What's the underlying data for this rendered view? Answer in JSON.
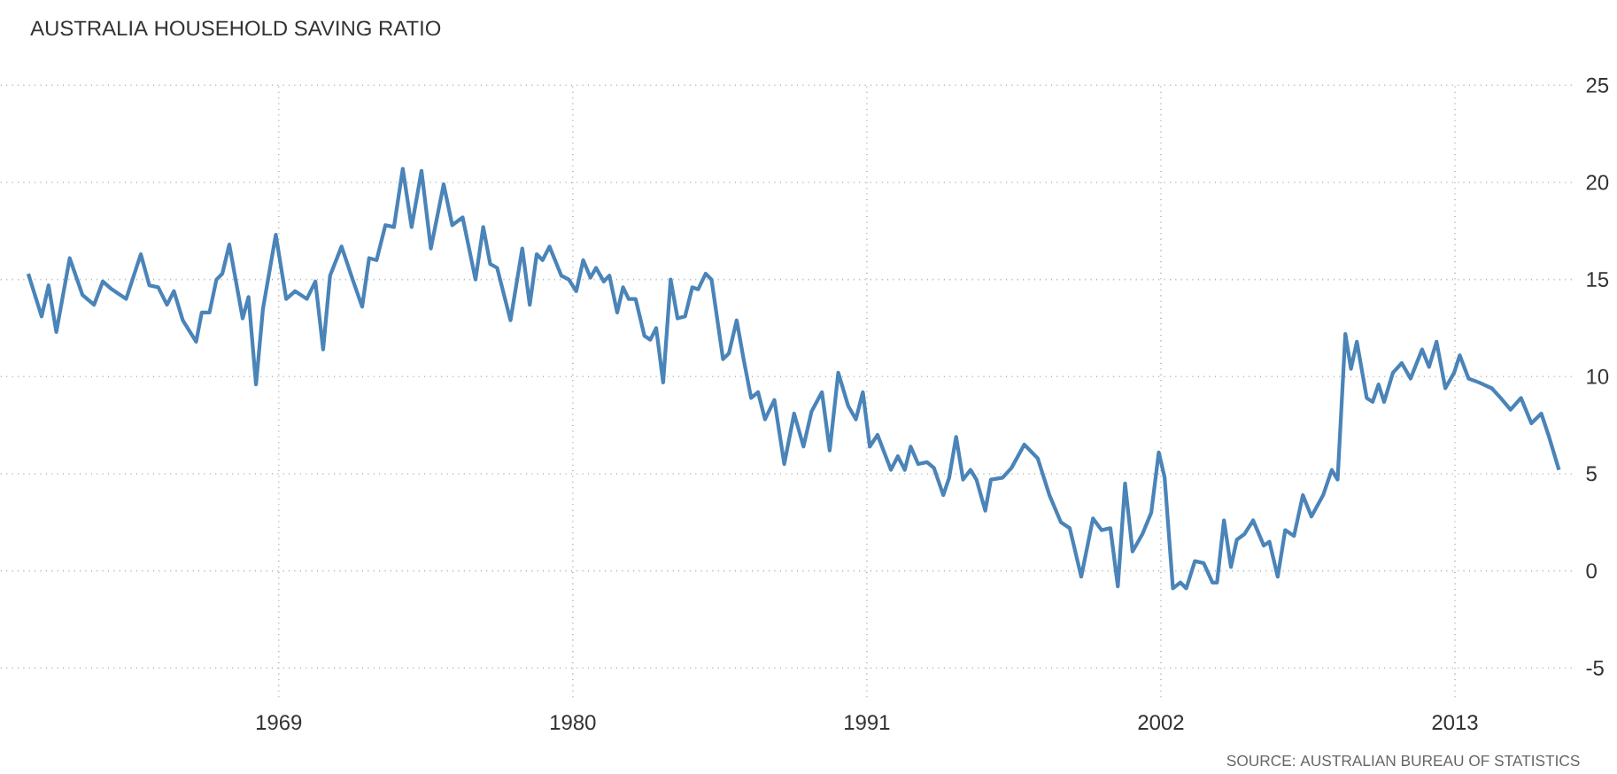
{
  "chart_data": {
    "type": "line",
    "title": "AUSTRALIA HOUSEHOLD SAVING RATIO",
    "annotations": [
      "SOURCE: AUSTRALIAN BUREAU OF STATISTICS"
    ],
    "series": [
      {
        "color": "#4a84b8",
        "x": [
          1959.63,
          1960.13,
          1960.39,
          1960.68,
          1961.18,
          1961.66,
          1962.09,
          1962.42,
          1962.75,
          1963.29,
          1963.84,
          1964.16,
          1964.49,
          1964.82,
          1965.08,
          1965.41,
          1965.91,
          1966.12,
          1966.41,
          1966.67,
          1966.89,
          1967.15,
          1967.65,
          1967.87,
          1968.15,
          1968.41,
          1968.89,
          1969.28,
          1969.61,
          1970.05,
          1970.37,
          1970.66,
          1970.92,
          1971.35,
          1971.79,
          1972.12,
          1972.38,
          1972.66,
          1972.99,
          1973.31,
          1973.64,
          1973.97,
          1974.34,
          1974.69,
          1975.17,
          1975.49,
          1975.88,
          1976.36,
          1976.65,
          1976.91,
          1977.17,
          1977.67,
          1978.11,
          1978.39,
          1978.65,
          1978.87,
          1979.13,
          1979.57,
          1979.85,
          1980.13,
          1980.39,
          1980.66,
          1980.87,
          1981.16,
          1981.37,
          1981.66,
          1981.88,
          1982.09,
          1982.35,
          1982.68,
          1982.9,
          1983.12,
          1983.38,
          1983.66,
          1983.92,
          1984.2,
          1984.47,
          1984.69,
          1984.97,
          1985.19,
          1985.62,
          1985.84,
          1986.13,
          1986.39,
          1986.67,
          1986.93,
          1987.19,
          1987.54,
          1987.91,
          1988.28,
          1988.63,
          1988.93,
          1989.32,
          1989.61,
          1989.93,
          1990.3,
          1990.59,
          1990.85,
          1991.11,
          1991.4,
          1991.9,
          1992.16,
          1992.42,
          1992.64,
          1992.92,
          1993.25,
          1993.51,
          1993.86,
          1994.08,
          1994.34,
          1994.6,
          1994.88,
          1995.1,
          1995.43,
          1995.64,
          1996.08,
          1996.41,
          1996.89,
          1997.39,
          1997.83,
          1998.26,
          1998.59,
          1999.02,
          1999.46,
          1999.78,
          2000.11,
          2000.39,
          2000.66,
          2000.94,
          2001.31,
          2001.64,
          2001.92,
          2002.14,
          2002.45,
          2002.73,
          2002.95,
          2003.27,
          2003.6,
          2003.93,
          2004.1,
          2004.36,
          2004.62,
          2004.84,
          2005.13,
          2005.45,
          2005.85,
          2006.06,
          2006.37,
          2006.65,
          2006.98,
          2007.31,
          2007.63,
          2008.07,
          2008.39,
          2008.61,
          2008.9,
          2009.11,
          2009.33,
          2009.7,
          2009.92,
          2010.14,
          2010.35,
          2010.68,
          2011.01,
          2011.34,
          2011.77,
          2012.03,
          2012.31,
          2012.64,
          2012.97,
          2013.18,
          2013.51,
          2013.9,
          2014.38,
          2014.71,
          2015.08,
          2015.47,
          2015.86,
          2016.23,
          2016.52,
          2016.89
        ],
        "values": [
          15.3,
          13.1,
          14.7,
          12.3,
          16.1,
          14.2,
          13.7,
          14.9,
          14.5,
          14.0,
          16.3,
          14.7,
          14.6,
          13.7,
          14.4,
          12.9,
          11.8,
          13.3,
          13.3,
          15.0,
          15.3,
          16.8,
          13.0,
          14.1,
          9.6,
          13.5,
          17.3,
          14.0,
          14.4,
          14.0,
          14.9,
          11.4,
          15.2,
          16.7,
          14.9,
          13.6,
          16.1,
          16.0,
          17.8,
          17.7,
          20.7,
          17.7,
          20.6,
          16.6,
          19.9,
          17.8,
          18.2,
          15.0,
          17.7,
          15.8,
          15.6,
          12.9,
          16.6,
          13.7,
          16.3,
          16.0,
          16.7,
          15.2,
          15.0,
          14.4,
          16.0,
          15.1,
          15.6,
          14.9,
          15.2,
          13.3,
          14.6,
          14.0,
          14.0,
          12.1,
          11.9,
          12.5,
          9.7,
          15.0,
          13.0,
          13.1,
          14.6,
          14.5,
          15.3,
          15.0,
          10.9,
          11.2,
          12.9,
          10.9,
          8.9,
          9.2,
          7.8,
          8.8,
          5.5,
          8.1,
          6.4,
          8.2,
          9.2,
          6.2,
          10.2,
          8.5,
          7.8,
          9.2,
          6.4,
          7.0,
          5.2,
          5.9,
          5.2,
          6.4,
          5.5,
          5.6,
          5.3,
          3.9,
          4.8,
          6.9,
          4.7,
          5.2,
          4.7,
          3.1,
          4.7,
          4.8,
          5.3,
          6.5,
          5.8,
          3.9,
          2.5,
          2.2,
          -0.3,
          2.7,
          2.1,
          2.2,
          -0.8,
          4.5,
          1.0,
          1.9,
          3.0,
          6.1,
          4.8,
          -0.9,
          -0.6,
          -0.9,
          0.5,
          0.4,
          -0.6,
          -0.6,
          2.6,
          0.2,
          1.6,
          1.9,
          2.6,
          1.3,
          1.5,
          -0.3,
          2.1,
          1.8,
          3.9,
          2.8,
          3.9,
          5.2,
          4.7,
          12.2,
          10.4,
          11.8,
          8.9,
          8.7,
          9.6,
          8.7,
          10.2,
          10.7,
          9.9,
          11.4,
          10.5,
          11.8,
          9.4,
          10.2,
          11.1,
          9.9,
          9.7,
          9.4,
          8.9,
          8.3,
          8.9,
          7.6,
          8.1,
          6.9,
          5.2
        ]
      }
    ],
    "xlim": [
      1958.6,
      2017.4
    ],
    "xticks": [
      1969,
      1980,
      1991,
      2002,
      2013
    ],
    "ylim": [
      -6.5,
      25
    ],
    "yticks": [
      -5,
      0,
      5,
      10,
      15,
      20,
      25
    ],
    "grid": true,
    "marker": "none",
    "line_style": "solid"
  }
}
